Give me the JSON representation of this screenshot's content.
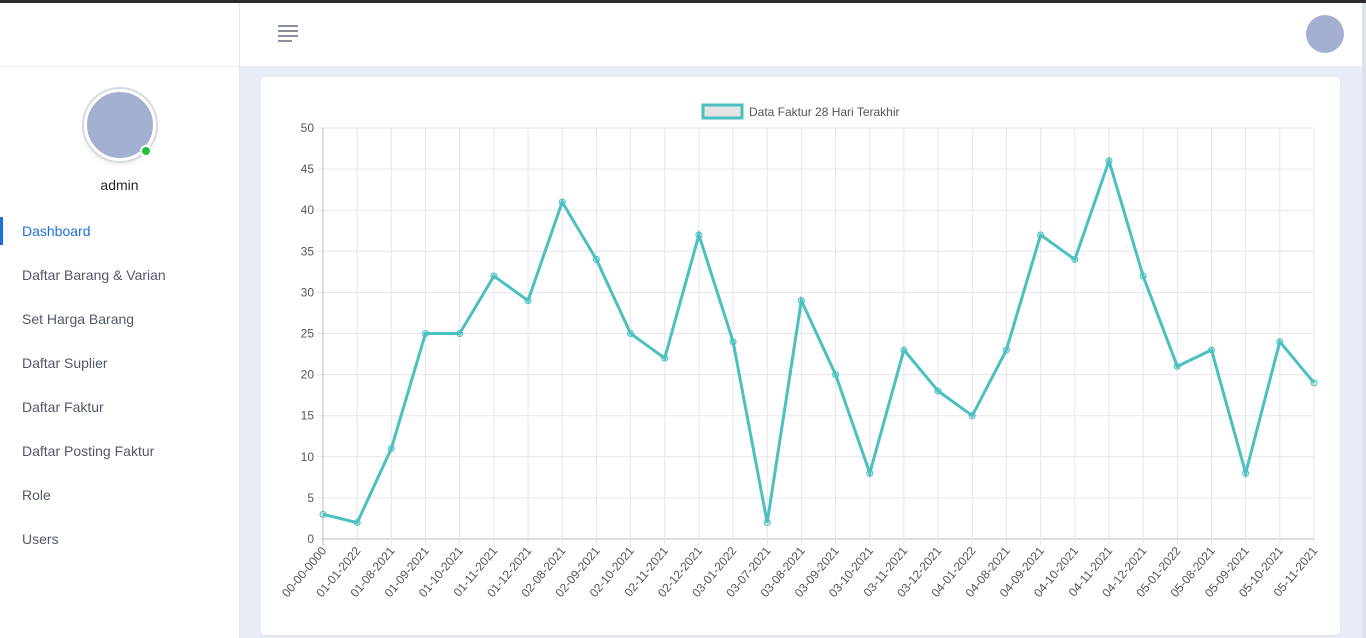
{
  "sidebar": {
    "username": "admin",
    "items": [
      {
        "label": "Dashboard",
        "active": true
      },
      {
        "label": "Daftar Barang & Varian"
      },
      {
        "label": "Set Harga Barang"
      },
      {
        "label": "Daftar Suplier"
      },
      {
        "label": "Daftar Faktur"
      },
      {
        "label": "Daftar Posting Faktur"
      },
      {
        "label": "Role"
      },
      {
        "label": "Users"
      }
    ]
  },
  "colors": {
    "accent": "#1e6fdc",
    "line": "#4bc0c0",
    "online": "#1fc13a",
    "avatar": "#a3b0d1"
  },
  "chart_data": {
    "type": "line",
    "legend": "top",
    "grid": true,
    "ylim": [
      0,
      50
    ],
    "yticks": [
      0,
      5,
      10,
      15,
      20,
      25,
      30,
      35,
      40,
      45,
      50
    ],
    "series": [
      {
        "name": "Data Faktur 28 Hari Terakhir",
        "x": [
          "00-00-0000",
          "01-01-2022",
          "01-08-2021",
          "01-09-2021",
          "01-10-2021",
          "01-11-2021",
          "01-12-2021",
          "02-08-2021",
          "02-09-2021",
          "02-10-2021",
          "02-11-2021",
          "02-12-2021",
          "03-01-2022",
          "03-07-2021",
          "03-08-2021",
          "03-09-2021",
          "03-10-2021",
          "03-11-2021",
          "03-12-2021",
          "04-01-2022",
          "04-08-2021",
          "04-09-2021",
          "04-10-2021",
          "04-11-2021",
          "04-12-2021",
          "05-01-2022",
          "05-08-2021",
          "05-09-2021",
          "05-10-2021",
          "05-11-2021"
        ],
        "values": [
          3,
          2,
          11,
          25,
          25,
          32,
          29,
          41,
          34,
          25,
          22,
          37,
          24,
          2,
          29,
          20,
          8,
          23,
          18,
          15,
          23,
          37,
          34,
          46,
          32,
          21,
          23,
          8,
          24,
          19
        ]
      }
    ]
  }
}
